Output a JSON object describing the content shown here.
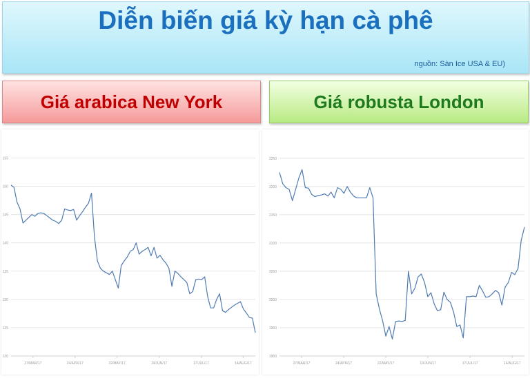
{
  "header": {
    "title": "Diễn biến giá kỳ hạn cà phê",
    "source": "nguồn: Sàn Ice USA & EU)"
  },
  "panels": {
    "left_title": "Giá arabica New York",
    "right_title": "Giá robusta London"
  },
  "colors": {
    "line": "#4f7ab3",
    "grid": "#e4e4e4",
    "left_title": "#c00000",
    "right_title": "#1f7a1f"
  },
  "chart_data": [
    {
      "type": "line",
      "title": "Giá arabica New York",
      "xlabel": "",
      "ylabel": "",
      "x_ticks": [
        "27/MAR/17",
        "24/APR/17",
        "22/MAY/17",
        "19/JUN/17",
        "17/JUL/17",
        "14/AUG/17"
      ],
      "y_ticks": [
        "120",
        "125",
        "130",
        "135",
        "140",
        "145",
        "150",
        "155"
      ],
      "ylim": [
        120,
        157
      ],
      "grid": true,
      "series": [
        {
          "values": [
            150.2,
            149.8,
            147.2,
            146,
            143.5,
            144,
            144.5,
            145,
            144.7,
            145.2,
            145.3,
            145.2,
            144.8,
            144.4,
            144,
            143.8,
            143.4,
            144,
            146,
            145.8,
            145.7,
            145.9,
            144,
            144.8,
            145.5,
            146.3,
            147,
            148.8,
            141,
            136.8,
            135.5,
            135,
            134.7,
            134.4,
            135,
            133.5,
            132,
            136,
            136.8,
            137.5,
            138.5,
            138.8,
            140,
            138,
            138.5,
            138.8,
            139.2,
            137.7,
            139.2,
            137.3,
            137.8,
            137,
            136.4,
            135.5,
            132.3,
            135,
            134.6,
            134,
            133.5,
            133,
            131,
            131.4,
            133.5,
            133.6,
            133.5,
            134,
            130.5,
            128.5,
            128.5,
            130,
            131,
            128,
            127.7,
            128.2,
            128.6,
            129,
            129.3,
            129.6,
            128.3,
            127.6,
            126.8,
            126.7,
            124.1
          ]
        }
      ]
    },
    {
      "type": "line",
      "title": "Giá robusta London",
      "xlabel": "",
      "ylabel": "",
      "x_ticks": [
        "27/MAR/17",
        "24/APR/17",
        "22/MAY/17",
        "19/JUN/17",
        "17/JUL/17",
        "14/AUG/17"
      ],
      "y_ticks": [
        "1900",
        "1950",
        "2000",
        "2050",
        "2100",
        "2150",
        "2200",
        "2250"
      ],
      "ylim": [
        1900,
        2262
      ],
      "grid": true,
      "series": [
        {
          "values": [
            2225,
            2205,
            2198,
            2195,
            2175,
            2195,
            2215,
            2230,
            2198,
            2197,
            2186,
            2182,
            2184,
            2185,
            2187,
            2183,
            2190,
            2180,
            2198,
            2195,
            2188,
            2200,
            2190,
            2183,
            2180,
            2180,
            2180,
            2180,
            2198,
            2180,
            2010,
            1983,
            1962,
            1935,
            1952,
            1930,
            1961,
            1962,
            1961,
            1963,
            2050,
            2010,
            2020,
            2040,
            2045,
            2030,
            2005,
            2012,
            1992,
            1980,
            1982,
            2013,
            2000,
            1995,
            1978,
            1952,
            1955,
            1932,
            2005,
            2005,
            2006,
            2005,
            2025,
            2015,
            2004,
            2005,
            2010,
            2016,
            2012,
            1990,
            2022,
            2030,
            2048,
            2044,
            2055,
            2105,
            2128
          ]
        }
      ]
    }
  ]
}
